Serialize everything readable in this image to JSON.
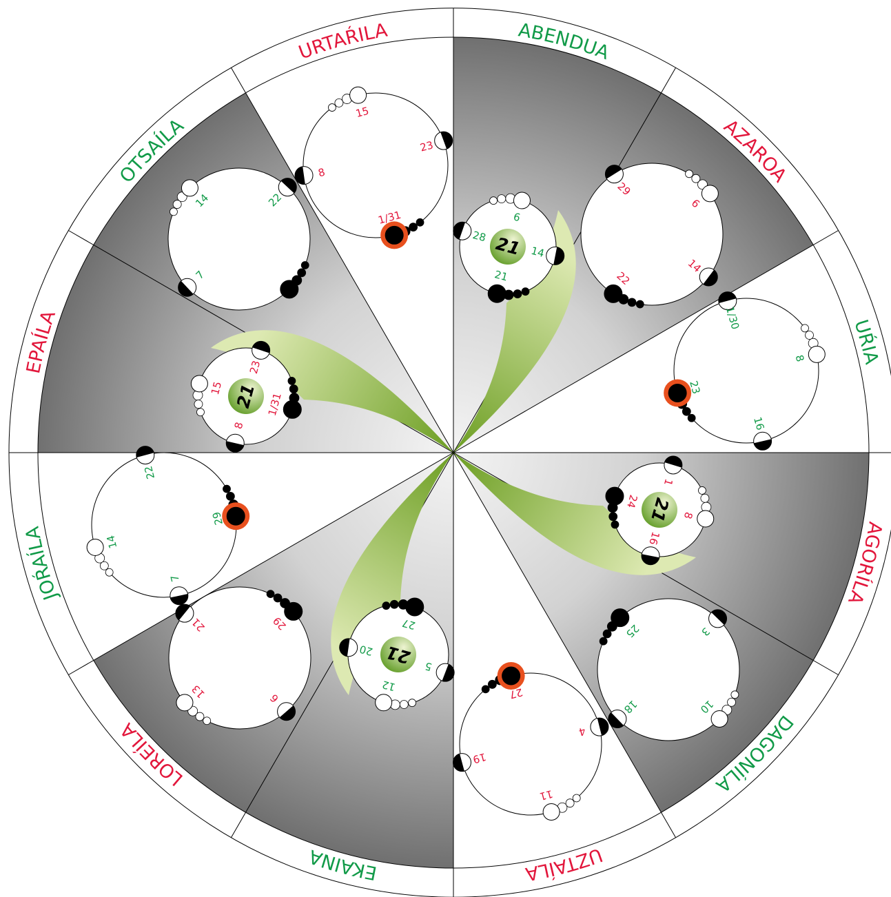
{
  "months": [
    {
      "name": "ABENDUA",
      "color": "#119a48",
      "days": [
        "6",
        "28",
        "14",
        "21"
      ],
      "highlight": "21"
    },
    {
      "name": "AZAROA",
      "color": "#e2163b",
      "days": [
        "29",
        "6",
        "22",
        "14"
      ]
    },
    {
      "name": "UŔIA",
      "color": "#119a48",
      "days": [
        "1/30",
        "8",
        "23",
        "16"
      ]
    },
    {
      "name": "AGORÍLA",
      "color": "#e2163b",
      "days": [
        "1",
        "24",
        "8",
        "16"
      ],
      "highlight": "21"
    },
    {
      "name": "DAGONÍLA",
      "color": "#119a48",
      "days": [
        "3",
        "25",
        "18",
        "10"
      ]
    },
    {
      "name": "UZTAÍLA",
      "color": "#e2163b",
      "days": [
        "27",
        "4",
        "19",
        "11"
      ]
    },
    {
      "name": "EKAINA",
      "color": "#119a48",
      "days": [
        "27",
        "20",
        "5",
        "12"
      ],
      "highlight": "21"
    },
    {
      "name": "LOREÍLA",
      "color": "#e2163b",
      "days": [
        "21",
        "29",
        "13",
        "6"
      ]
    },
    {
      "name": "JOŔAÍLA",
      "color": "#119a48",
      "days": [
        "22",
        "29",
        "14",
        "7"
      ]
    },
    {
      "name": "EPAÍLA",
      "color": "#e2163b",
      "days": [
        "23",
        "15",
        "1/31",
        "8"
      ],
      "highlight": "21"
    },
    {
      "name": "OTSAÍLA",
      "color": "#119a48",
      "days": [
        "14",
        "22",
        "7"
      ]
    },
    {
      "name": "URTAŔILA",
      "color": "#e2163b",
      "days": [
        "15",
        "23",
        "8",
        "1/31"
      ]
    }
  ]
}
